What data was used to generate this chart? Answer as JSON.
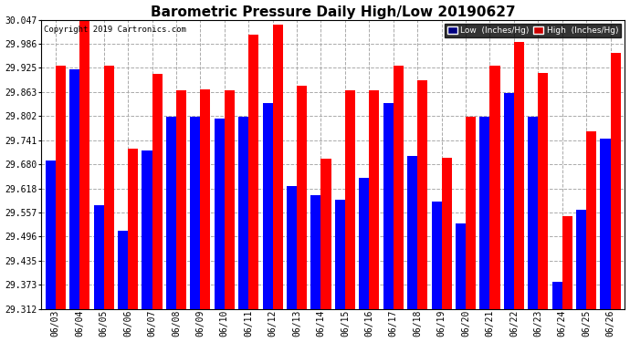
{
  "title": "Barometric Pressure Daily High/Low 20190627",
  "copyright": "Copyright 2019 Cartronics.com",
  "low_color": "#0000ff",
  "high_color": "#ff0000",
  "legend_low_bg": "#000080",
  "legend_high_bg": "#cc0000",
  "bg_color": "#ffffff",
  "grid_color": "#aaaaaa",
  "dates": [
    "06/03",
    "06/04",
    "06/05",
    "06/06",
    "06/07",
    "06/08",
    "06/09",
    "06/10",
    "06/11",
    "06/12",
    "06/13",
    "06/14",
    "06/15",
    "06/16",
    "06/17",
    "06/18",
    "06/19",
    "06/20",
    "06/21",
    "06/22",
    "06/23",
    "06/24",
    "06/25",
    "06/26"
  ],
  "lows": [
    29.69,
    29.92,
    29.575,
    29.51,
    29.715,
    29.8,
    29.8,
    29.795,
    29.8,
    29.835,
    29.625,
    29.6,
    29.59,
    29.645,
    29.835,
    29.7,
    29.585,
    29.53,
    29.8,
    29.86,
    29.8,
    29.38,
    29.565,
    29.745
  ],
  "highs": [
    29.93,
    30.047,
    29.93,
    29.72,
    29.91,
    29.867,
    29.87,
    29.867,
    30.01,
    30.035,
    29.88,
    29.695,
    29.867,
    29.867,
    29.93,
    29.893,
    29.697,
    29.8,
    29.93,
    29.99,
    29.912,
    29.548,
    29.763,
    29.962
  ],
  "ylim_min": 29.312,
  "ylim_max": 30.047,
  "yticks": [
    30.047,
    29.986,
    29.925,
    29.863,
    29.802,
    29.741,
    29.68,
    29.618,
    29.557,
    29.496,
    29.435,
    29.373,
    29.312
  ]
}
